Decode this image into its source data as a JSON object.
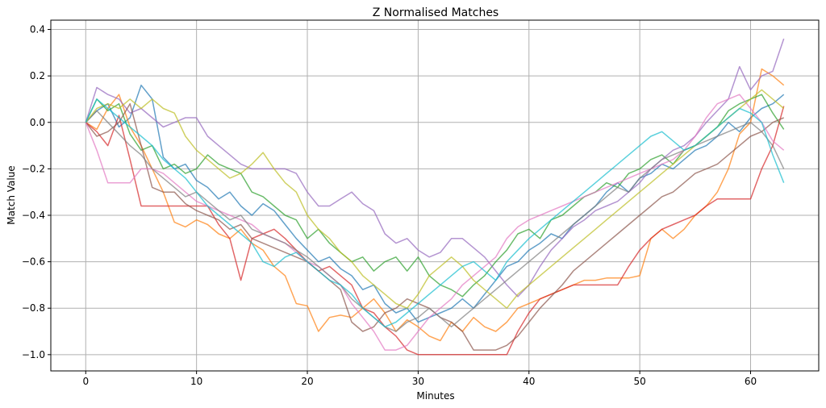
{
  "chart_data": {
    "type": "line",
    "title": "Z Normalised Matches",
    "xlabel": "Minutes",
    "ylabel": "Match Value",
    "xlim": [
      -3.15,
      66.15
    ],
    "ylim": [
      -1.07,
      0.44
    ],
    "xticks": [
      0,
      10,
      20,
      30,
      40,
      50,
      60
    ],
    "yticks": [
      0.4,
      0.2,
      0.0,
      -0.2,
      -0.4,
      -0.6,
      -0.8,
      -1.0
    ],
    "xtick_labels": [
      "0",
      "10",
      "20",
      "30",
      "40",
      "50",
      "60"
    ],
    "ytick_labels": [
      "0.4",
      "0.2",
      "0.0",
      "−0.2",
      "−0.4",
      "−0.6",
      "−0.8",
      "−1.0"
    ],
    "grid": true,
    "legend": "none",
    "x": [
      0,
      1,
      2,
      3,
      4,
      5,
      6,
      7,
      8,
      9,
      10,
      11,
      12,
      13,
      14,
      15,
      16,
      17,
      18,
      19,
      20,
      21,
      22,
      23,
      24,
      25,
      26,
      27,
      28,
      29,
      30,
      31,
      32,
      33,
      34,
      35,
      36,
      37,
      38,
      39,
      40,
      41,
      42,
      43,
      44,
      45,
      46,
      47,
      48,
      49,
      50,
      51,
      52,
      53,
      54,
      55,
      56,
      57,
      58,
      59,
      60,
      61,
      62,
      63
    ],
    "series": [
      {
        "color": "#1f77b4",
        "values": [
          0,
          0.05,
          0.08,
          -0.02,
          0.02,
          0.16,
          0.1,
          -0.15,
          -0.2,
          -0.18,
          -0.25,
          -0.28,
          -0.33,
          -0.3,
          -0.36,
          -0.4,
          -0.35,
          -0.38,
          -0.44,
          -0.5,
          -0.55,
          -0.6,
          -0.58,
          -0.63,
          -0.66,
          -0.72,
          -0.7,
          -0.78,
          -0.82,
          -0.8,
          -0.86,
          -0.84,
          -0.82,
          -0.8,
          -0.76,
          -0.8,
          -0.74,
          -0.68,
          -0.62,
          -0.6,
          -0.55,
          -0.52,
          -0.48,
          -0.5,
          -0.44,
          -0.4,
          -0.36,
          -0.3,
          -0.26,
          -0.3,
          -0.24,
          -0.22,
          -0.18,
          -0.2,
          -0.16,
          -0.12,
          -0.1,
          -0.06,
          0.0,
          -0.04,
          0.02,
          0.06,
          0.08,
          0.12
        ]
      },
      {
        "color": "#ff7f0e",
        "values": [
          0,
          -0.03,
          0.06,
          0.12,
          -0.02,
          -0.1,
          -0.2,
          -0.3,
          -0.43,
          -0.45,
          -0.42,
          -0.44,
          -0.48,
          -0.5,
          -0.46,
          -0.52,
          -0.55,
          -0.62,
          -0.66,
          -0.78,
          -0.79,
          -0.9,
          -0.84,
          -0.83,
          -0.84,
          -0.8,
          -0.76,
          -0.82,
          -0.9,
          -0.85,
          -0.88,
          -0.92,
          -0.94,
          -0.86,
          -0.9,
          -0.84,
          -0.88,
          -0.9,
          -0.86,
          -0.8,
          -0.78,
          -0.76,
          -0.74,
          -0.72,
          -0.7,
          -0.68,
          -0.68,
          -0.67,
          -0.67,
          -0.67,
          -0.66,
          -0.5,
          -0.46,
          -0.5,
          -0.46,
          -0.4,
          -0.36,
          -0.3,
          -0.2,
          -0.05,
          0.0,
          0.23,
          0.2,
          0.16
        ]
      },
      {
        "color": "#2ca02c",
        "values": [
          0,
          0.1,
          0.05,
          0.08,
          -0.05,
          -0.12,
          -0.1,
          -0.2,
          -0.18,
          -0.22,
          -0.2,
          -0.14,
          -0.18,
          -0.2,
          -0.22,
          -0.3,
          -0.32,
          -0.36,
          -0.4,
          -0.42,
          -0.5,
          -0.46,
          -0.52,
          -0.56,
          -0.6,
          -0.58,
          -0.64,
          -0.6,
          -0.58,
          -0.64,
          -0.58,
          -0.66,
          -0.7,
          -0.72,
          -0.75,
          -0.7,
          -0.66,
          -0.6,
          -0.55,
          -0.48,
          -0.46,
          -0.5,
          -0.42,
          -0.4,
          -0.36,
          -0.32,
          -0.3,
          -0.26,
          -0.28,
          -0.22,
          -0.2,
          -0.16,
          -0.14,
          -0.18,
          -0.12,
          -0.1,
          -0.06,
          -0.02,
          0.05,
          0.08,
          0.1,
          0.12,
          0.04,
          -0.03
        ]
      },
      {
        "color": "#d62728",
        "values": [
          0,
          -0.04,
          -0.1,
          0.03,
          -0.16,
          -0.36,
          -0.36,
          -0.36,
          -0.36,
          -0.36,
          -0.36,
          -0.36,
          -0.44,
          -0.5,
          -0.68,
          -0.5,
          -0.48,
          -0.46,
          -0.5,
          -0.55,
          -0.6,
          -0.64,
          -0.62,
          -0.66,
          -0.7,
          -0.8,
          -0.82,
          -0.88,
          -0.92,
          -0.98,
          -1.0,
          -1.0,
          -1.0,
          -1.0,
          -1.0,
          -1.0,
          -1.0,
          -1.0,
          -1.0,
          -0.9,
          -0.82,
          -0.76,
          -0.74,
          -0.72,
          -0.7,
          -0.7,
          -0.7,
          -0.7,
          -0.7,
          -0.62,
          -0.55,
          -0.5,
          -0.46,
          -0.44,
          -0.42,
          -0.4,
          -0.36,
          -0.33,
          -0.33,
          -0.33,
          -0.33,
          -0.2,
          -0.1,
          0.07
        ]
      },
      {
        "color": "#9467bd",
        "values": [
          0,
          0.15,
          0.12,
          0.1,
          0.04,
          0.06,
          0.02,
          -0.02,
          0.0,
          0.02,
          0.02,
          -0.06,
          -0.1,
          -0.14,
          -0.18,
          -0.2,
          -0.2,
          -0.2,
          -0.2,
          -0.22,
          -0.3,
          -0.36,
          -0.36,
          -0.33,
          -0.3,
          -0.35,
          -0.38,
          -0.48,
          -0.52,
          -0.5,
          -0.55,
          -0.58,
          -0.56,
          -0.5,
          -0.5,
          -0.54,
          -0.58,
          -0.64,
          -0.7,
          -0.75,
          -0.7,
          -0.62,
          -0.55,
          -0.5,
          -0.45,
          -0.42,
          -0.38,
          -0.36,
          -0.34,
          -0.3,
          -0.26,
          -0.2,
          -0.16,
          -0.12,
          -0.1,
          -0.06,
          0.0,
          0.05,
          0.1,
          0.24,
          0.14,
          0.2,
          0.22,
          0.36
        ]
      },
      {
        "color": "#8c564b",
        "values": [
          0,
          -0.06,
          -0.04,
          0.0,
          0.08,
          -0.1,
          -0.28,
          -0.3,
          -0.3,
          -0.35,
          -0.38,
          -0.4,
          -0.42,
          -0.46,
          -0.44,
          -0.5,
          -0.52,
          -0.54,
          -0.56,
          -0.58,
          -0.6,
          -0.64,
          -0.68,
          -0.72,
          -0.86,
          -0.9,
          -0.88,
          -0.82,
          -0.8,
          -0.76,
          -0.78,
          -0.8,
          -0.84,
          -0.86,
          -0.9,
          -0.98,
          -0.98,
          -0.98,
          -0.96,
          -0.92,
          -0.86,
          -0.8,
          -0.75,
          -0.7,
          -0.64,
          -0.6,
          -0.56,
          -0.52,
          -0.48,
          -0.44,
          -0.4,
          -0.36,
          -0.32,
          -0.3,
          -0.26,
          -0.22,
          -0.2,
          -0.18,
          -0.14,
          -0.1,
          -0.06,
          -0.04,
          0.0,
          0.02
        ]
      },
      {
        "color": "#e377c2",
        "values": [
          0,
          -0.12,
          -0.26,
          -0.26,
          -0.26,
          -0.2,
          -0.2,
          -0.22,
          -0.26,
          -0.3,
          -0.34,
          -0.36,
          -0.38,
          -0.4,
          -0.42,
          -0.44,
          -0.48,
          -0.5,
          -0.52,
          -0.56,
          -0.6,
          -0.62,
          -0.66,
          -0.7,
          -0.78,
          -0.84,
          -0.9,
          -0.98,
          -0.98,
          -0.96,
          -0.9,
          -0.84,
          -0.8,
          -0.76,
          -0.7,
          -0.66,
          -0.62,
          -0.58,
          -0.5,
          -0.45,
          -0.42,
          -0.4,
          -0.38,
          -0.36,
          -0.34,
          -0.32,
          -0.3,
          -0.28,
          -0.26,
          -0.24,
          -0.22,
          -0.2,
          -0.18,
          -0.16,
          -0.12,
          -0.06,
          0.02,
          0.08,
          0.1,
          0.12,
          0.06,
          0.0,
          -0.08,
          -0.12
        ]
      },
      {
        "color": "#7f7f7f",
        "values": [
          0,
          0.05,
          0.0,
          -0.05,
          -0.1,
          -0.14,
          -0.2,
          -0.24,
          -0.28,
          -0.32,
          -0.3,
          -0.34,
          -0.38,
          -0.42,
          -0.4,
          -0.46,
          -0.48,
          -0.5,
          -0.52,
          -0.55,
          -0.58,
          -0.62,
          -0.66,
          -0.7,
          -0.76,
          -0.8,
          -0.84,
          -0.88,
          -0.9,
          -0.86,
          -0.84,
          -0.8,
          -0.84,
          -0.88,
          -0.84,
          -0.8,
          -0.76,
          -0.72,
          -0.68,
          -0.64,
          -0.6,
          -0.56,
          -0.52,
          -0.48,
          -0.44,
          -0.4,
          -0.36,
          -0.32,
          -0.28,
          -0.3,
          -0.24,
          -0.2,
          -0.16,
          -0.14,
          -0.12,
          -0.1,
          -0.08,
          -0.06,
          -0.04,
          -0.02,
          0.0,
          -0.04,
          -0.1,
          -0.2
        ]
      },
      {
        "color": "#bcbd22",
        "values": [
          0,
          0.06,
          0.08,
          0.06,
          0.1,
          0.06,
          0.1,
          0.06,
          0.04,
          -0.06,
          -0.12,
          -0.16,
          -0.2,
          -0.24,
          -0.22,
          -0.18,
          -0.13,
          -0.2,
          -0.26,
          -0.3,
          -0.4,
          -0.46,
          -0.5,
          -0.56,
          -0.6,
          -0.66,
          -0.7,
          -0.74,
          -0.78,
          -0.8,
          -0.74,
          -0.66,
          -0.62,
          -0.58,
          -0.62,
          -0.68,
          -0.72,
          -0.76,
          -0.8,
          -0.74,
          -0.7,
          -0.66,
          -0.62,
          -0.58,
          -0.54,
          -0.5,
          -0.46,
          -0.42,
          -0.38,
          -0.34,
          -0.3,
          -0.26,
          -0.22,
          -0.18,
          -0.14,
          -0.1,
          -0.06,
          -0.02,
          0.02,
          0.06,
          0.1,
          0.14,
          0.1,
          0.06
        ]
      },
      {
        "color": "#17becf",
        "values": [
          0,
          0.1,
          0.06,
          0.02,
          -0.02,
          -0.06,
          -0.1,
          -0.16,
          -0.2,
          -0.24,
          -0.3,
          -0.36,
          -0.4,
          -0.44,
          -0.48,
          -0.52,
          -0.6,
          -0.62,
          -0.58,
          -0.56,
          -0.6,
          -0.64,
          -0.68,
          -0.7,
          -0.74,
          -0.8,
          -0.84,
          -0.88,
          -0.86,
          -0.82,
          -0.78,
          -0.74,
          -0.7,
          -0.66,
          -0.62,
          -0.6,
          -0.64,
          -0.68,
          -0.6,
          -0.55,
          -0.5,
          -0.46,
          -0.42,
          -0.38,
          -0.34,
          -0.3,
          -0.26,
          -0.22,
          -0.18,
          -0.14,
          -0.1,
          -0.06,
          -0.04,
          -0.08,
          -0.12,
          -0.1,
          -0.06,
          -0.02,
          0.02,
          0.06,
          0.04,
          0.0,
          -0.14,
          -0.26
        ]
      }
    ]
  }
}
